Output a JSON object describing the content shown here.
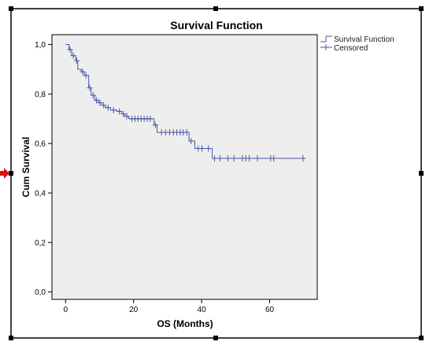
{
  "chart_data": {
    "type": "line",
    "title": "Survival Function",
    "xlabel": "OS (Months)",
    "ylabel": "Cum Survival",
    "xlim": [
      -4,
      74
    ],
    "ylim": [
      -0.03,
      1.04
    ],
    "x_ticks": [
      0,
      20,
      40,
      60
    ],
    "x_tick_labels": [
      "0",
      "20",
      "40",
      "60"
    ],
    "y_ticks": [
      0.0,
      0.2,
      0.4,
      0.6,
      0.8,
      1.0
    ],
    "y_tick_labels": [
      "0,0",
      "0,2",
      "0,4",
      "0,6",
      "0,8",
      "1,0"
    ],
    "grid": false,
    "legend_position": "top-right (outside plot)",
    "colors": {
      "line": "#4a57a8",
      "plot_bg": "#eeeeee",
      "frame": "#000000",
      "handle_arrow": "#e01010"
    },
    "series": [
      {
        "name": "Survival Function",
        "style": "step",
        "points": [
          [
            0,
            1.0
          ],
          [
            1,
            1.0
          ],
          [
            1,
            0.98
          ],
          [
            1.8,
            0.98
          ],
          [
            1.8,
            0.955
          ],
          [
            3,
            0.955
          ],
          [
            3,
            0.935
          ],
          [
            3.6,
            0.935
          ],
          [
            3.6,
            0.9
          ],
          [
            4.6,
            0.9
          ],
          [
            4.6,
            0.89
          ],
          [
            5.5,
            0.89
          ],
          [
            5.5,
            0.875
          ],
          [
            6.8,
            0.875
          ],
          [
            6.8,
            0.825
          ],
          [
            7.5,
            0.825
          ],
          [
            7.5,
            0.795
          ],
          [
            8.6,
            0.795
          ],
          [
            8.6,
            0.775
          ],
          [
            9.6,
            0.775
          ],
          [
            9.6,
            0.765
          ],
          [
            10.6,
            0.765
          ],
          [
            10.6,
            0.755
          ],
          [
            11.7,
            0.755
          ],
          [
            11.7,
            0.745
          ],
          [
            13.2,
            0.745
          ],
          [
            13.2,
            0.735
          ],
          [
            15,
            0.735
          ],
          [
            15,
            0.73
          ],
          [
            16.5,
            0.73
          ],
          [
            16.5,
            0.72
          ],
          [
            17.4,
            0.72
          ],
          [
            17.4,
            0.71
          ],
          [
            18.6,
            0.71
          ],
          [
            18.6,
            0.7
          ],
          [
            26,
            0.7
          ],
          [
            26,
            0.675
          ],
          [
            26.9,
            0.675
          ],
          [
            26.9,
            0.645
          ],
          [
            36.3,
            0.645
          ],
          [
            36.3,
            0.61
          ],
          [
            38,
            0.61
          ],
          [
            38,
            0.58
          ],
          [
            43.1,
            0.58
          ],
          [
            43.1,
            0.54
          ],
          [
            70,
            0.54
          ]
        ]
      },
      {
        "name": "Censored",
        "style": "markers",
        "points": [
          [
            1.3,
            0.98
          ],
          [
            2.3,
            0.955
          ],
          [
            3.3,
            0.935
          ],
          [
            5,
            0.89
          ],
          [
            6,
            0.875
          ],
          [
            7.1,
            0.825
          ],
          [
            8.1,
            0.795
          ],
          [
            9.1,
            0.775
          ],
          [
            10.1,
            0.765
          ],
          [
            11.2,
            0.755
          ],
          [
            12.5,
            0.745
          ],
          [
            14.1,
            0.735
          ],
          [
            15.8,
            0.73
          ],
          [
            17,
            0.72
          ],
          [
            18,
            0.71
          ],
          [
            19.5,
            0.7
          ],
          [
            20.4,
            0.7
          ],
          [
            21.3,
            0.7
          ],
          [
            22.2,
            0.7
          ],
          [
            23.1,
            0.7
          ],
          [
            24,
            0.7
          ],
          [
            24.9,
            0.7
          ],
          [
            26.4,
            0.675
          ],
          [
            28.2,
            0.645
          ],
          [
            29.4,
            0.645
          ],
          [
            30.6,
            0.645
          ],
          [
            31.7,
            0.645
          ],
          [
            32.7,
            0.645
          ],
          [
            33.7,
            0.645
          ],
          [
            34.6,
            0.645
          ],
          [
            35.6,
            0.645
          ],
          [
            36.9,
            0.61
          ],
          [
            39,
            0.58
          ],
          [
            40.1,
            0.58
          ],
          [
            42,
            0.58
          ],
          [
            43.8,
            0.54
          ],
          [
            45.4,
            0.54
          ],
          [
            47.7,
            0.54
          ],
          [
            49.5,
            0.54
          ],
          [
            52,
            0.54
          ],
          [
            53,
            0.54
          ],
          [
            54,
            0.54
          ],
          [
            56.4,
            0.54
          ],
          [
            60.3,
            0.54
          ],
          [
            61.2,
            0.54
          ],
          [
            69.8,
            0.54
          ]
        ]
      }
    ]
  }
}
